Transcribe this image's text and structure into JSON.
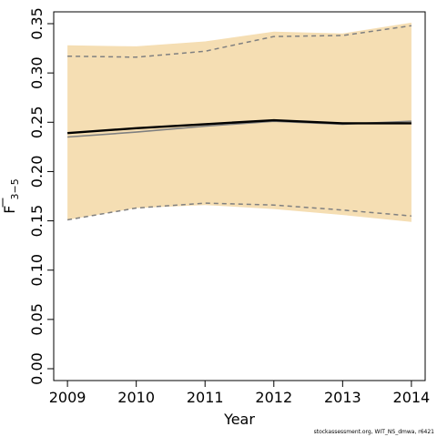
{
  "chart_data": {
    "type": "line",
    "title": "",
    "xlabel": "Year",
    "ylabel_main": "F",
    "ylabel_sub": "3−5",
    "x": [
      2009,
      2010,
      2011,
      2012,
      2013,
      2014
    ],
    "xlim": [
      2008.8,
      2014.2
    ],
    "ylim": [
      -0.012,
      0.362
    ],
    "x_ticks": [
      "2009",
      "2010",
      "2011",
      "2012",
      "2013",
      "2014"
    ],
    "y_ticks": [
      "0.00",
      "0.05",
      "0.10",
      "0.15",
      "0.20",
      "0.25",
      "0.30",
      "0.35"
    ],
    "y_tick_values": [
      0.0,
      0.05,
      0.1,
      0.15,
      0.2,
      0.25,
      0.3,
      0.35
    ],
    "band_upper": [
      0.328,
      0.327,
      0.332,
      0.342,
      0.34,
      0.351
    ],
    "band_lower": [
      0.151,
      0.163,
      0.166,
      0.162,
      0.156,
      0.149
    ],
    "estimate": [
      0.239,
      0.244,
      0.248,
      0.252,
      0.249,
      0.249
    ],
    "previous_estimate": [
      0.235,
      0.24,
      0.246,
      0.251,
      0.248,
      0.251
    ],
    "previous_upper": [
      0.317,
      0.316,
      0.322,
      0.337,
      0.338,
      0.348
    ],
    "previous_lower": [
      0.151,
      0.163,
      0.168,
      0.166,
      0.161,
      0.155
    ],
    "colors": {
      "band": "#f5deb3",
      "estimate": "#000000",
      "previous": "#808080"
    },
    "grid": false,
    "footer": "stockassessment.org, WIT_NS_dmwa, r6421"
  }
}
